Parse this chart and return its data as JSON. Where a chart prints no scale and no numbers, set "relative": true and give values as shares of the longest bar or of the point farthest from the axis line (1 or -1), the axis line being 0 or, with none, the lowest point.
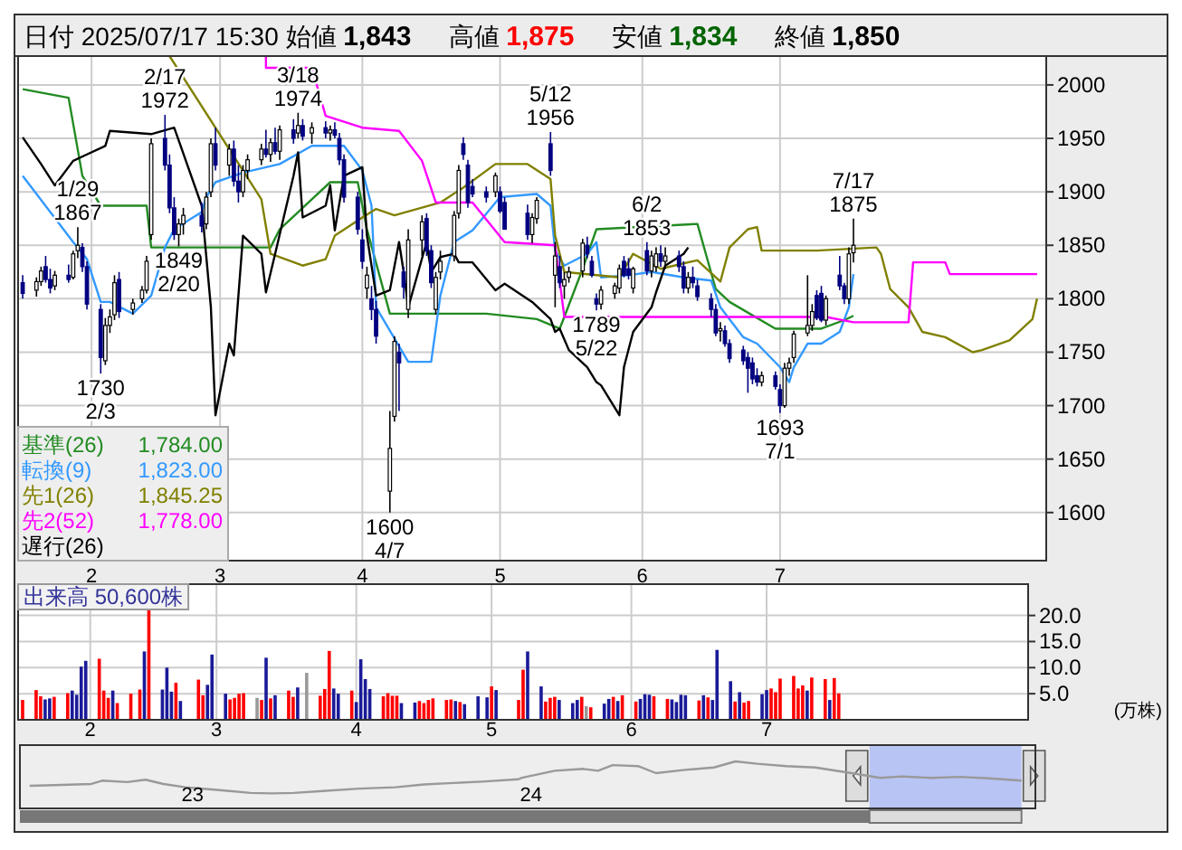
{
  "chart_data": [
    {
      "type": "candlestick",
      "title": "日付 2025/07/17 15:30 始値 **1,843** 高値 **1,875** 安値 **1,834** 終値 **1,850**",
      "colors": [
        "#000080",
        "#ffffff",
        "#ffffff",
        "#000080",
        "#000080",
        "#ffffff",
        "#000080",
        "#ffffff",
        "#ffffff",
        "#000080",
        "#000080",
        "#000080",
        "#ffffff",
        "#ffffff",
        "#ffffff",
        "#000080",
        "#ffffff",
        "#ffffff",
        "#ffffff",
        "#ffffff",
        "#000080",
        "#000080",
        "#000080",
        "#ffffff",
        "#ffffff",
        "#000080",
        "#ffffff",
        "#ffffff",
        "#000080",
        "#ffffff",
        "#000080",
        "#000080",
        "#ffffff",
        "#ffffff",
        "#ffffff",
        "#000080",
        "#ffffff",
        "#000080",
        "#ffffff",
        "#000080",
        "#ffffff",
        "#000080",
        "#ffffff",
        "#000080",
        "#ffffff",
        "#000080",
        "#000080",
        "#000080",
        "#000080",
        "#000080",
        "#ffffff",
        "#000080",
        "#000080",
        "#ffffff",
        "#ffffff",
        "#000080",
        "#000080",
        "#ffffff",
        "#ffffff",
        "#000080",
        "#000080",
        "#ffffff",
        "#ffffff",
        "#ffffff",
        "#ffffff",
        "#000080",
        "#000080",
        "#000080",
        "#000080",
        "#ffffff",
        "#000080",
        "#000080",
        "#000080",
        "#ffffff",
        "#ffffff",
        "#000080",
        "#ffffff",
        "#000080",
        "#ffffff",
        "#ffffff",
        "#ffffff",
        "#000080",
        "#000080",
        "#000080",
        "#ffffff",
        "#ffffff",
        "#ffffff",
        "#000080",
        "#000080",
        "#ffffff",
        "#000080",
        "#ffffff",
        "#ffffff",
        "#000080",
        "#ffffff",
        "#000080",
        "#000080",
        "#ffffff",
        "#000080",
        "#000080",
        "#000080",
        "#000080",
        "#ffffff",
        "#000080",
        "#000080",
        "#000080",
        "#000080",
        "#000080",
        "#000080",
        "#ffffff",
        "#000080",
        "#000080",
        "#ffffff",
        "#ffffff",
        "#ffffff",
        "#ffffff",
        "#ffffff",
        "#000080",
        "#000080",
        "#ffffff",
        "#000080",
        "#000080",
        "#ffffff",
        "#ffffff"
      ],
      "x": [
        "2025-01-17",
        "2025-01-20",
        "2025-01-21",
        "2025-01-22",
        "2025-01-23",
        "2025-01-24",
        "2025-01-27",
        "2025-01-28",
        "2025-01-29",
        "2025-01-30",
        "2025-01-31",
        "2025-02-03",
        "2025-02-04",
        "2025-02-05",
        "2025-02-06",
        "2025-02-07",
        "2025-02-10",
        "2025-02-12",
        "2025-02-13",
        "2025-02-14",
        "2025-02-17",
        "2025-02-18",
        "2025-02-19",
        "2025-02-20",
        "2025-02-21",
        "2025-02-25",
        "2025-02-26",
        "2025-02-27",
        "2025-02-28",
        "2025-03-03",
        "2025-03-04",
        "2025-03-05",
        "2025-03-06",
        "2025-03-07",
        "2025-03-10",
        "2025-03-11",
        "2025-03-12",
        "2025-03-13",
        "2025-03-14",
        "2025-03-17",
        "2025-03-18",
        "2025-03-19",
        "2025-03-21",
        "2025-03-24",
        "2025-03-25",
        "2025-03-26",
        "2025-03-27",
        "2025-03-28",
        "2025-03-31",
        "2025-04-01",
        "2025-04-02",
        "2025-04-03",
        "2025-04-04",
        "2025-04-07",
        "2025-04-08",
        "2025-04-09",
        "2025-04-10",
        "2025-04-11",
        "2025-04-14",
        "2025-04-15",
        "2025-04-16",
        "2025-04-17",
        "2025-04-18",
        "2025-04-21",
        "2025-04-22",
        "2025-04-23",
        "2025-04-24",
        "2025-04-25",
        "2025-04-28",
        "2025-04-30",
        "2025-05-01",
        "2025-05-02",
        "2025-05-07",
        "2025-05-08",
        "2025-05-09",
        "2025-05-12",
        "2025-05-13",
        "2025-05-14",
        "2025-05-15",
        "2025-05-16",
        "2025-05-19",
        "2025-05-20",
        "2025-05-21",
        "2025-05-22",
        "2025-05-23",
        "2025-05-26",
        "2025-05-27",
        "2025-05-28",
        "2025-05-29",
        "2025-05-30",
        "2025-06-02",
        "2025-06-03",
        "2025-06-04",
        "2025-06-05",
        "2025-06-06",
        "2025-06-09",
        "2025-06-10",
        "2025-06-11",
        "2025-06-12",
        "2025-06-13",
        "2025-06-16",
        "2025-06-17",
        "2025-06-18",
        "2025-06-19",
        "2025-06-20",
        "2025-06-23",
        "2025-06-24",
        "2025-06-25",
        "2025-06-26",
        "2025-06-27",
        "2025-06-30",
        "2025-07-01",
        "2025-07-02",
        "2025-07-03",
        "2025-07-04",
        "2025-07-07",
        "2025-07-08",
        "2025-07-09",
        "2025-07-10",
        "2025-07-11",
        "2025-07-14",
        "2025-07-15",
        "2025-07-16",
        "2025-07-17"
      ],
      "ohlc": [
        [
          1815,
          1822,
          1800,
          1805
        ],
        [
          1808,
          1820,
          1802,
          1816
        ],
        [
          1816,
          1830,
          1812,
          1826
        ],
        [
          1830,
          1840,
          1815,
          1818
        ],
        [
          1818,
          1828,
          1805,
          1810
        ],
        [
          1812,
          1826,
          1808,
          1822
        ],
        [
          1822,
          1832,
          1815,
          1818
        ],
        [
          1820,
          1845,
          1818,
          1842
        ],
        [
          1845,
          1867,
          1838,
          1850
        ],
        [
          1848,
          1852,
          1825,
          1830
        ],
        [
          1830,
          1835,
          1790,
          1795
        ],
        [
          1790,
          1795,
          1730,
          1745
        ],
        [
          1742,
          1782,
          1738,
          1775
        ],
        [
          1775,
          1790,
          1768,
          1783
        ],
        [
          1785,
          1822,
          1780,
          1815
        ],
        [
          1818,
          1825,
          1782,
          1788
        ],
        [
          1790,
          1800,
          1785,
          1796
        ],
        [
          1800,
          1812,
          1796,
          1808
        ],
        [
          1808,
          1840,
          1805,
          1835
        ],
        [
          1860,
          1950,
          1855,
          1945
        ],
        [
          1950,
          1972,
          1920,
          1925
        ],
        [
          1925,
          1935,
          1880,
          1885
        ],
        [
          1885,
          1895,
          1855,
          1860
        ],
        [
          1860,
          1875,
          1849,
          1870
        ],
        [
          1870,
          1885,
          1860,
          1878
        ],
        [
          1878,
          1890,
          1862,
          1868
        ],
        [
          1870,
          1900,
          1865,
          1895
        ],
        [
          1900,
          1950,
          1895,
          1945
        ],
        [
          1945,
          1960,
          1920,
          1925
        ],
        [
          1925,
          1945,
          1915,
          1940
        ],
        [
          1940,
          1948,
          1905,
          1910
        ],
        [
          1910,
          1925,
          1890,
          1900
        ],
        [
          1900,
          1925,
          1895,
          1920
        ],
        [
          1920,
          1935,
          1912,
          1930
        ],
        [
          1930,
          1945,
          1925,
          1940
        ],
        [
          1940,
          1958,
          1932,
          1935
        ],
        [
          1935,
          1950,
          1928,
          1946
        ],
        [
          1946,
          1960,
          1935,
          1938
        ],
        [
          1938,
          1962,
          1930,
          1958
        ],
        [
          1958,
          1968,
          1945,
          1950
        ],
        [
          1955,
          1974,
          1950,
          1962
        ],
        [
          1962,
          1968,
          1948,
          1952
        ],
        [
          1955,
          1965,
          1945,
          1960
        ],
        [
          1960,
          1966,
          1950,
          1955
        ],
        [
          1955,
          1962,
          1948,
          1958
        ],
        [
          1958,
          1965,
          1950,
          1953
        ],
        [
          1950,
          1955,
          1925,
          1930
        ],
        [
          1930,
          1935,
          1890,
          1895
        ],
        [
          1895,
          1900,
          1860,
          1865
        ],
        [
          1855,
          1865,
          1828,
          1835
        ],
        [
          1810,
          1830,
          1800,
          1822
        ],
        [
          1800,
          1812,
          1780,
          1790
        ],
        [
          1790,
          1798,
          1758,
          1765
        ],
        [
          1620,
          1695,
          1600,
          1660
        ],
        [
          1690,
          1765,
          1685,
          1760
        ],
        [
          1750,
          1758,
          1695,
          1740
        ],
        [
          1825,
          1830,
          1800,
          1811
        ],
        [
          1790,
          1865,
          1782,
          1855
        ],
        [
          1855,
          1878,
          1840,
          1872
        ],
        [
          1875,
          1880,
          1840,
          1845
        ],
        [
          1845,
          1850,
          1810,
          1815
        ],
        [
          1790,
          1825,
          1785,
          1820
        ],
        [
          1825,
          1845,
          1818,
          1835
        ],
        [
          1840,
          1882,
          1835,
          1878
        ],
        [
          1880,
          1925,
          1875,
          1920
        ],
        [
          1945,
          1951,
          1930,
          1935
        ],
        [
          1925,
          1930,
          1885,
          1890
        ],
        [
          1905,
          1912,
          1895,
          1898
        ],
        [
          1900,
          1905,
          1890,
          1895
        ],
        [
          1900,
          1918,
          1895,
          1915
        ],
        [
          1900,
          1905,
          1880,
          1882
        ],
        [
          1890,
          1895,
          1865,
          1865
        ],
        [
          1880,
          1888,
          1855,
          1860
        ],
        [
          1860,
          1880,
          1852,
          1876
        ],
        [
          1875,
          1895,
          1870,
          1892
        ],
        [
          1945,
          1956,
          1915,
          1920
        ],
        [
          1822,
          1853,
          1792,
          1840
        ],
        [
          1830,
          1840,
          1810,
          1815
        ],
        [
          1812,
          1825,
          1800,
          1818
        ],
        [
          1820,
          1830,
          1815,
          1825
        ],
        [
          1826,
          1856,
          1820,
          1852
        ],
        [
          1850,
          1858,
          1838,
          1842
        ],
        [
          1835,
          1840,
          1820,
          1822
        ],
        [
          1800,
          1805,
          1789,
          1795
        ],
        [
          1795,
          1812,
          1790,
          1808
        ],
        [
          1805,
          1815,
          1800,
          1812
        ],
        [
          1810,
          1832,
          1805,
          1828
        ],
        [
          1835,
          1840,
          1820,
          1822
        ],
        [
          1828,
          1838,
          1818,
          1822
        ],
        [
          1810,
          1830,
          1805,
          1828
        ],
        [
          1845,
          1853,
          1822,
          1826
        ],
        [
          1826,
          1845,
          1820,
          1840
        ],
        [
          1830,
          1848,
          1825,
          1842
        ],
        [
          1842,
          1850,
          1830,
          1835
        ],
        [
          1835,
          1848,
          1828,
          1840
        ],
        [
          1840,
          1845,
          1825,
          1830
        ],
        [
          1830,
          1835,
          1805,
          1810
        ],
        [
          1810,
          1825,
          1805,
          1820
        ],
        [
          1820,
          1830,
          1810,
          1815
        ],
        [
          1812,
          1818,
          1798,
          1802
        ],
        [
          1800,
          1805,
          1783,
          1790
        ],
        [
          1790,
          1795,
          1765,
          1768
        ],
        [
          1770,
          1778,
          1760,
          1772
        ],
        [
          1770,
          1775,
          1755,
          1758
        ],
        [
          1758,
          1762,
          1740,
          1744
        ],
        [
          1752,
          1756,
          1738,
          1742
        ],
        [
          1745,
          1750,
          1712,
          1735
        ],
        [
          1740,
          1745,
          1720,
          1725
        ],
        [
          1728,
          1735,
          1718,
          1722
        ],
        [
          1722,
          1732,
          1718,
          1728
        ],
        [
          1728,
          1732,
          1715,
          1718
        ],
        [
          1715,
          1720,
          1693,
          1700
        ],
        [
          1700,
          1740,
          1698,
          1735
        ],
        [
          1735,
          1745,
          1728,
          1740
        ],
        [
          1745,
          1770,
          1740,
          1767
        ],
        [
          1768,
          1822,
          1765,
          1775
        ],
        [
          1775,
          1795,
          1770,
          1788
        ],
        [
          1803,
          1808,
          1780,
          1782
        ],
        [
          1805,
          1812,
          1778,
          1780
        ],
        [
          1780,
          1803,
          1775,
          1800
        ],
        [
          1822,
          1840,
          1808,
          1812
        ],
        [
          1812,
          1815,
          1795,
          1800
        ],
        [
          1800,
          1848,
          1795,
          1842
        ],
        [
          1843,
          1875,
          1834,
          1850
        ]
      ],
      "xlim": [
        "2025-01-16",
        "2025-08-28"
      ],
      "ylim": [
        1555,
        2027
      ],
      "xticks": [
        {
          "value": "2025-02-01",
          "label": "2"
        },
        {
          "value": "2025-03-01",
          "label": "3"
        },
        {
          "value": "2025-04-01",
          "label": "4"
        },
        {
          "value": "2025-05-01",
          "label": "5"
        },
        {
          "value": "2025-06-01",
          "label": "6"
        },
        {
          "value": "2025-07-01",
          "label": "7"
        }
      ],
      "yticks": [
        1600,
        1650,
        1700,
        1750,
        1800,
        1850,
        1900,
        1950,
        2000
      ],
      "grid": true,
      "legend": "bottom left",
      "series": [
        {
          "type": "line",
          "name": "基準(26)",
          "color": "#228b22",
          "x": [
            "2025-01-17",
            "2025-01-27",
            "2025-01-30",
            "2025-02-03",
            "2025-02-13",
            "2025-02-14",
            "2025-03-12",
            "2025-03-14",
            "2025-03-21",
            "2025-03-25",
            "2025-03-31",
            "2025-04-02",
            "2025-04-07",
            "2025-04-28",
            "2025-05-09",
            "2025-05-14",
            "2025-05-15",
            "2025-05-19",
            "2025-05-22",
            "2025-06-13",
            "2025-06-17",
            "2025-06-20",
            "2025-06-30",
            "2025-07-10",
            "2025-07-15",
            "2025-07-17"
          ],
          "values": [
            1996,
            1988,
            1915,
            1887,
            1887,
            1848,
            1848,
            1865,
            1893,
            1909,
            1909,
            1865,
            1786,
            1786,
            1781,
            1772,
            1783,
            1828,
            1865,
            1870,
            1809,
            1797,
            1772,
            1772,
            1780,
            1784
          ]
        },
        {
          "type": "line",
          "name": "転換(9)",
          "color": "#3399ff",
          "x": [
            "2025-01-17",
            "2025-01-28",
            "2025-01-31",
            "2025-02-03",
            "2025-02-05",
            "2025-02-10",
            "2025-02-14",
            "2025-02-17",
            "2025-02-19",
            "2025-02-25",
            "2025-02-26",
            "2025-02-28",
            "2025-03-06",
            "2025-03-14",
            "2025-03-21",
            "2025-03-28",
            "2025-04-01",
            "2025-04-03",
            "2025-04-04",
            "2025-04-11",
            "2025-04-16",
            "2025-04-18",
            "2025-04-21",
            "2025-04-25",
            "2025-05-01",
            "2025-05-09",
            "2025-05-12",
            "2025-05-13",
            "2025-05-15",
            "2025-05-20",
            "2025-05-22",
            "2025-05-23",
            "2025-05-29",
            "2025-06-03",
            "2025-06-10",
            "2025-06-16",
            "2025-06-18",
            "2025-06-23",
            "2025-06-26",
            "2025-07-01",
            "2025-07-03",
            "2025-07-04",
            "2025-07-07",
            "2025-07-10",
            "2025-07-14",
            "2025-07-16",
            "2025-07-17"
          ],
          "values": [
            1915,
            1853,
            1837,
            1797,
            1797,
            1786,
            1803,
            1848,
            1865,
            1881,
            1895,
            1909,
            1918,
            1926,
            1943,
            1943,
            1920,
            1887,
            1792,
            1741,
            1741,
            1803,
            1853,
            1864,
            1895,
            1898,
            1887,
            1845,
            1831,
            1842,
            1853,
            1820,
            1822,
            1825,
            1820,
            1817,
            1792,
            1764,
            1758,
            1736,
            1722,
            1736,
            1758,
            1758,
            1769,
            1792,
            1823
          ]
        },
        {
          "type": "line",
          "name": "先1(26)",
          "color": "#808000",
          "x": [
            "2025-02-18",
            "2025-03-10",
            "2025-03-12",
            "2025-03-19",
            "2025-03-24",
            "2025-03-26",
            "2025-04-01",
            "2025-04-04",
            "2025-04-08",
            "2025-04-18",
            "2025-04-23",
            "2025-04-30",
            "2025-05-07",
            "2025-05-12",
            "2025-05-13",
            "2025-05-15",
            "2025-05-27",
            "2025-05-30",
            "2025-06-05",
            "2025-06-13",
            "2025-06-18",
            "2025-06-20",
            "2025-06-24",
            "2025-06-26",
            "2025-06-27",
            "2025-07-09",
            "2025-07-22",
            "2025-07-23",
            "2025-07-25",
            "2025-07-29",
            "2025-08-01",
            "2025-08-06",
            "2025-08-12",
            "2025-08-14",
            "2025-08-20",
            "2025-08-25",
            "2025-08-26"
          ],
          "values": [
            2027,
            1893,
            1842,
            1831,
            1837,
            1859,
            1876,
            1884,
            1878,
            1890,
            1904,
            1926,
            1926,
            1912,
            1859,
            1825,
            1820,
            1842,
            1828,
            1836,
            1816,
            1848,
            1865,
            1867,
            1845,
            1845,
            1848,
            1842,
            1809,
            1792,
            1769,
            1764,
            1750,
            1752,
            1761,
            1781,
            1800
          ]
        },
        {
          "type": "line",
          "name": "先2(52)",
          "color": "#ff00ff",
          "x": [
            "2025-03-11",
            "2025-03-11",
            "2025-03-21",
            "2025-03-24",
            "2025-04-01",
            "2025-04-09",
            "2025-04-14",
            "2025-04-17",
            "2025-04-25",
            "2025-05-02",
            "2025-05-13",
            "2025-05-15",
            "2025-07-11",
            "2025-07-17",
            "2025-07-29",
            "2025-07-30",
            "2025-08-06",
            "2025-08-07",
            "2025-08-26"
          ],
          "values": [
            2027,
            2016,
            2016,
            1971,
            1960,
            1957,
            1929,
            1890,
            1890,
            1853,
            1850,
            1783,
            1783,
            1778,
            1778,
            1834,
            1834,
            1823,
            1823
          ]
        },
        {
          "type": "line",
          "name": "遅行(26)",
          "color": "#000000",
          "x": [
            "2025-01-17",
            "2025-01-21",
            "2025-01-24",
            "2025-01-28",
            "2025-01-31",
            "2025-02-04",
            "2025-02-05",
            "2025-02-14",
            "2025-02-19",
            "2025-02-20",
            "2025-02-25",
            "2025-02-27",
            "2025-02-28",
            "2025-03-03",
            "2025-03-04",
            "2025-03-06",
            "2025-03-10",
            "2025-03-11",
            "2025-03-13",
            "2025-03-17",
            "2025-03-18",
            "2025-03-19",
            "2025-03-24",
            "2025-03-25",
            "2025-03-26",
            "2025-03-28",
            "2025-04-01",
            "2025-04-02",
            "2025-04-04",
            "2025-04-07",
            "2025-04-09",
            "2025-04-10",
            "2025-04-11",
            "2025-04-15",
            "2025-04-16",
            "2025-04-18",
            "2025-04-21",
            "2025-04-22",
            "2025-04-25",
            "2025-04-30",
            "2025-05-02",
            "2025-05-08",
            "2025-05-12",
            "2025-05-13",
            "2025-05-14",
            "2025-05-16",
            "2025-05-20",
            "2025-05-22",
            "2025-05-23",
            "2025-05-27",
            "2025-05-28",
            "2025-05-30",
            "2025-06-03",
            "2025-06-04",
            "2025-06-06",
            "2025-06-10",
            "2025-06-11"
          ],
          "values": [
            1951,
            1926,
            1906,
            1929,
            1935,
            1943,
            1957,
            1954,
            1960,
            1948,
            1887,
            1792,
            1691,
            1758,
            1747,
            1859,
            1842,
            1806,
            1842,
            1915,
            1937,
            1876,
            1887,
            1906,
            1864,
            1915,
            1923,
            1859,
            1803,
            1808,
            1853,
            1825,
            1792,
            1853,
            1825,
            1839,
            1842,
            1834,
            1834,
            1808,
            1814,
            1797,
            1781,
            1769,
            1772,
            1752,
            1736,
            1722,
            1719,
            1691,
            1736,
            1769,
            1792,
            1806,
            1831,
            1842,
            1848
          ]
        }
      ],
      "annotations": [
        "1,784.00",
        "1,823.00",
        "1,845.25",
        "1,778.00",
        {
          "text": "1/29\n1867",
          "x": "2025-01-29",
          "y": 1867
        },
        {
          "text": "1730\n2/3",
          "x": "2025-02-03",
          "y": 1730
        },
        {
          "text": "2/17\n1972",
          "x": "2025-02-17",
          "y": 1972
        },
        {
          "text": "1849\n2/20",
          "x": "2025-02-20",
          "y": 1849
        },
        {
          "text": "3/18\n1974",
          "x": "2025-03-18",
          "y": 1974
        },
        {
          "text": "1600\n4/7",
          "x": "2025-04-07",
          "y": 1600
        },
        {
          "text": "5/12\n1956",
          "x": "2025-05-12",
          "y": 1956
        },
        {
          "text": "1789\n5/22",
          "x": "2025-05-22",
          "y": 1789
        },
        {
          "text": "6/2\n1853",
          "x": "2025-06-02",
          "y": 1853
        },
        {
          "text": "1693\n7/1",
          "x": "2025-07-01",
          "y": 1693
        },
        {
          "text": "7/17\n1875",
          "x": "2025-07-17",
          "y": 1875
        }
      ]
    },
    {
      "type": "bar",
      "title": "出来高 50,600株",
      "ylabel": "(万株)",
      "x": [
        "2025-01-17",
        "2025-01-20",
        "2025-01-21",
        "2025-01-22",
        "2025-01-23",
        "2025-01-24",
        "2025-01-27",
        "2025-01-28",
        "2025-01-29",
        "2025-01-30",
        "2025-01-31",
        "2025-02-03",
        "2025-02-04",
        "2025-02-05",
        "2025-02-06",
        "2025-02-07",
        "2025-02-10",
        "2025-02-12",
        "2025-02-13",
        "2025-02-14",
        "2025-02-17",
        "2025-02-18",
        "2025-02-19",
        "2025-02-20",
        "2025-02-21",
        "2025-02-25",
        "2025-02-26",
        "2025-02-27",
        "2025-02-28",
        "2025-03-03",
        "2025-03-04",
        "2025-03-05",
        "2025-03-06",
        "2025-03-07",
        "2025-03-10",
        "2025-03-11",
        "2025-03-12",
        "2025-03-13",
        "2025-03-14",
        "2025-03-17",
        "2025-03-18",
        "2025-03-19",
        "2025-03-21",
        "2025-03-24",
        "2025-03-25",
        "2025-03-26",
        "2025-03-27",
        "2025-03-28",
        "2025-03-31",
        "2025-04-01",
        "2025-04-02",
        "2025-04-03",
        "2025-04-04",
        "2025-04-07",
        "2025-04-08",
        "2025-04-09",
        "2025-04-10",
        "2025-04-11",
        "2025-04-14",
        "2025-04-15",
        "2025-04-16",
        "2025-04-17",
        "2025-04-18",
        "2025-04-21",
        "2025-04-22",
        "2025-04-23",
        "2025-04-24",
        "2025-04-25",
        "2025-04-28",
        "2025-04-30",
        "2025-05-01",
        "2025-05-02",
        "2025-05-07",
        "2025-05-08",
        "2025-05-09",
        "2025-05-12",
        "2025-05-13",
        "2025-05-14",
        "2025-05-15",
        "2025-05-16",
        "2025-05-19",
        "2025-05-20",
        "2025-05-21",
        "2025-05-22",
        "2025-05-23",
        "2025-05-26",
        "2025-05-27",
        "2025-05-28",
        "2025-05-29",
        "2025-05-30",
        "2025-06-02",
        "2025-06-03",
        "2025-06-04",
        "2025-06-05",
        "2025-06-06",
        "2025-06-09",
        "2025-06-10",
        "2025-06-11",
        "2025-06-12",
        "2025-06-13",
        "2025-06-16",
        "2025-06-17",
        "2025-06-18",
        "2025-06-19",
        "2025-06-20",
        "2025-06-23",
        "2025-06-24",
        "2025-06-25",
        "2025-06-26",
        "2025-06-27",
        "2025-06-30",
        "2025-07-01",
        "2025-07-02",
        "2025-07-03",
        "2025-07-04",
        "2025-07-07",
        "2025-07-08",
        "2025-07-09",
        "2025-07-10",
        "2025-07-11",
        "2025-07-14",
        "2025-07-15",
        "2025-07-16",
        "2025-07-17"
      ],
      "values": [
        3.8,
        5.7,
        4.5,
        3.9,
        4.1,
        4.4,
        5.1,
        5.6,
        4.8,
        10.2,
        11.3,
        11.7,
        5.6,
        4.2,
        5.6,
        3.2,
        5.0,
        5.8,
        13.1,
        21.2,
        5.8,
        10.0,
        5.4,
        7.1,
        3.6,
        7.7,
        4.7,
        6.7,
        12.5,
        5.0,
        3.9,
        4.2,
        5.0,
        5.1,
        4.2,
        3.8,
        11.9,
        4.1,
        4.7,
        5.6,
        4.4,
        6.2,
        9.0,
        4.6,
        5.9,
        13.2,
        6.0,
        5.0,
        5.6,
        3.4,
        11.6,
        7.8,
        5.9,
        4.5,
        5.1,
        4.6,
        4.6,
        3.2,
        3.3,
        3.6,
        3.2,
        3.8,
        4.1,
        3.8,
        3.9,
        3.6,
        3.4,
        3.0,
        4.5,
        4.3,
        6.4,
        5.7,
        3.8,
        9.6,
        13.1,
        6.4,
        3.5,
        4.2,
        4.4,
        3.8,
        3.2,
        3.8,
        4.4,
        2.6,
        2.4,
        3.1,
        4.0,
        4.4,
        3.6,
        4.7,
        3.5,
        4.0,
        4.9,
        4.8,
        4.5,
        4.0,
        3.9,
        3.4,
        4.8,
        4.7,
        3.7,
        4.7,
        4.3,
        3.8,
        13.4,
        7.4,
        3.5,
        5.3,
        3.3,
        3.6,
        4.9,
        5.7,
        6.0,
        5.3,
        7.9,
        8.4,
        6.0,
        6.6,
        5.6,
        8.1,
        7.8,
        3.8,
        8.0,
        5.06
      ],
      "colors": [
        "#ff0000",
        "#ff0000",
        "#ff0000",
        "#1a1a99",
        "#1a1a99",
        "#ff0000",
        "#ff0000",
        "#1a1a99",
        "#1a1a99",
        "#1a1a99",
        "#1a1a99",
        "#ff0000",
        "#ff0000",
        "#ff0000",
        "#1a1a99",
        "#ff0000",
        "#ff0000",
        "#ff0000",
        "#1a1a99",
        "#ff0000",
        "#1a1a99",
        "#1a1a99",
        "#1a1a99",
        "#ff0000",
        "#1a1a99",
        "#ff0000",
        "#ff0000",
        "#1a1a99",
        "#1a1a99",
        "#1a1a99",
        "#ff0000",
        "#ff0000",
        "#ff0000",
        "#ff0000",
        "#999999",
        "#ff0000",
        "#1a1a99",
        "#ff0000",
        "#1a1a99",
        "#ff0000",
        "#ff0000",
        "#1a1a99",
        "#999999",
        "#ff0000",
        "#ff0000",
        "#ff0000",
        "#1a1a99",
        "#1a1a99",
        "#ff0000",
        "#1a1a99",
        "#1a1a99",
        "#1a1a99",
        "#1a1a99",
        "#ff0000",
        "#ff0000",
        "#ff0000",
        "#ff0000",
        "#1a1a99",
        "#1a1a99",
        "#ff0000",
        "#ff0000",
        "#ff0000",
        "#ff0000",
        "#ff0000",
        "#ff0000",
        "#1a1a99",
        "#ff0000",
        "#1a1a99",
        "#1a1a99",
        "#1a1a99",
        "#ff0000",
        "#1a1a99",
        "#ff0000",
        "#ff0000",
        "#1a1a99",
        "#1a1a99",
        "#ff0000",
        "#ff0000",
        "#ff0000",
        "#1a1a99",
        "#1a1a99",
        "#1a1a99",
        "#ff0000",
        "#999999",
        "#ff0000",
        "#1a1a99",
        "#1a1a99",
        "#ff0000",
        "#1a1a99",
        "#ff0000",
        "#ff0000",
        "#1a1a99",
        "#1a1a99",
        "#1a1a99",
        "#ff0000",
        "#ff0000",
        "#1a1a99",
        "#1a1a99",
        "#1a1a99",
        "#1a1a99",
        "#ff0000",
        "#1a1a99",
        "#ff0000",
        "#1a1a99",
        "#1a1a99",
        "#1a1a99",
        "#ff0000",
        "#1a1a99",
        "#ff0000",
        "#ff0000",
        "#1a1a99",
        "#1a1a99",
        "#ff0000",
        "#ff0000",
        "#ff0000",
        "#ff0000",
        "#ff0000",
        "#ff0000",
        "#1a1a99",
        "#ff0000",
        "#ff0000",
        "#1a1a99",
        "#ff0000",
        "#ff0000"
      ],
      "xlim": [
        "2025-01-16",
        "2025-08-28"
      ],
      "ylim": [
        0,
        26
      ],
      "xticks": [
        {
          "value": "2025-02-01",
          "label": "2"
        },
        {
          "value": "2025-03-01",
          "label": "3"
        },
        {
          "value": "2025-04-01",
          "label": "4"
        },
        {
          "value": "2025-05-01",
          "label": "5"
        },
        {
          "value": "2025-06-01",
          "label": "6"
        },
        {
          "value": "2025-07-01",
          "label": "7"
        }
      ],
      "yticks": [
        {
          "value": 5,
          "label": "5.0"
        },
        {
          "value": 10,
          "label": "10.0"
        },
        {
          "value": 15,
          "label": "15.0"
        },
        {
          "value": 20,
          "label": "20.0"
        }
      ],
      "grid": true
    },
    {
      "type": "line",
      "relative": true,
      "color": "#999999",
      "x": [
        2022.519,
        2022.615,
        2022.701,
        2022.733,
        2022.807,
        2022.861,
        2022.914,
        2022.979,
        2023.064,
        2023.171,
        2023.235,
        2023.299,
        2023.385,
        2023.492,
        2023.599,
        2023.684,
        2023.77,
        2023.856,
        2023.963,
        2023.973,
        2024.07,
        2024.155,
        2024.198,
        2024.241,
        2024.316,
        2024.369,
        2024.455,
        2024.54,
        2024.604,
        2024.668,
        2024.754,
        2024.84,
        2024.947,
        2025.032,
        2025.096,
        2025.182,
        2025.267,
        2025.353,
        2025.449
      ],
      "values": [
        0.48,
        0.5,
        0.52,
        0.59,
        0.56,
        0.61,
        0.52,
        0.45,
        0.4,
        0.33,
        0.32,
        0.33,
        0.37,
        0.42,
        0.45,
        0.51,
        0.54,
        0.57,
        0.62,
        0.65,
        0.8,
        0.84,
        0.8,
        0.92,
        0.9,
        0.75,
        0.82,
        0.87,
        1,
        0.95,
        0.9,
        0.87,
        0.75,
        0.65,
        0.68,
        0.65,
        0.67,
        0.64,
        0.59
      ],
      "xlim": [
        2022.49,
        2025.49
      ],
      "xticks": [
        {
          "value": 2023,
          "label": "23"
        },
        {
          "value": 2024,
          "label": "24"
        }
      ],
      "bands": [
        {
          "axis": "x",
          "from": 2025.0,
          "to": 2025.449,
          "color": "#b8c4f4"
        }
      ]
    }
  ]
}
